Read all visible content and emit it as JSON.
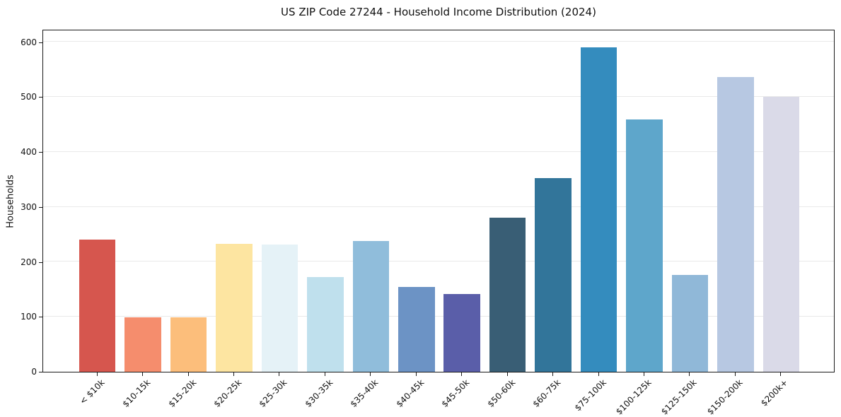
{
  "chart_data": {
    "type": "bar",
    "title": "US ZIP Code 27244 - Household Income Distribution (2024)",
    "xlabel": "",
    "ylabel": "Households",
    "categories": [
      "< $10k",
      "$10-15k",
      "$15-20k",
      "$20-25k",
      "$25-30k",
      "$30-35k",
      "$35-40k",
      "$40-45k",
      "$45-50k",
      "$50-60k",
      "$60-75k",
      "$75-100k",
      "$100-125k",
      "$125-150k",
      "$150-200k",
      "$200k+"
    ],
    "values": [
      240,
      99,
      99,
      233,
      232,
      173,
      238,
      154,
      142,
      280,
      352,
      590,
      459,
      176,
      537,
      500
    ],
    "bar_colors": [
      "#d6564e",
      "#f58d6d",
      "#fcbe7b",
      "#fde5a1",
      "#e5f2f7",
      "#bfe0ed",
      "#90bddb",
      "#6c93c5",
      "#5a5ea9",
      "#395e75",
      "#32759a",
      "#348cbe",
      "#5ea6cb",
      "#90b8d8",
      "#b7c8e2",
      "#dadae8"
    ],
    "ylim": [
      0,
      623
    ],
    "yticks": [
      0,
      100,
      200,
      300,
      400,
      500,
      600
    ],
    "grid": "horizontal-only",
    "legend": null,
    "x_tick_rotation": 45
  },
  "colors": {
    "background": "#ffffff",
    "grid_line": "#e9e9e9",
    "axis_spine": "#1a1a1a",
    "text": "#111111"
  }
}
